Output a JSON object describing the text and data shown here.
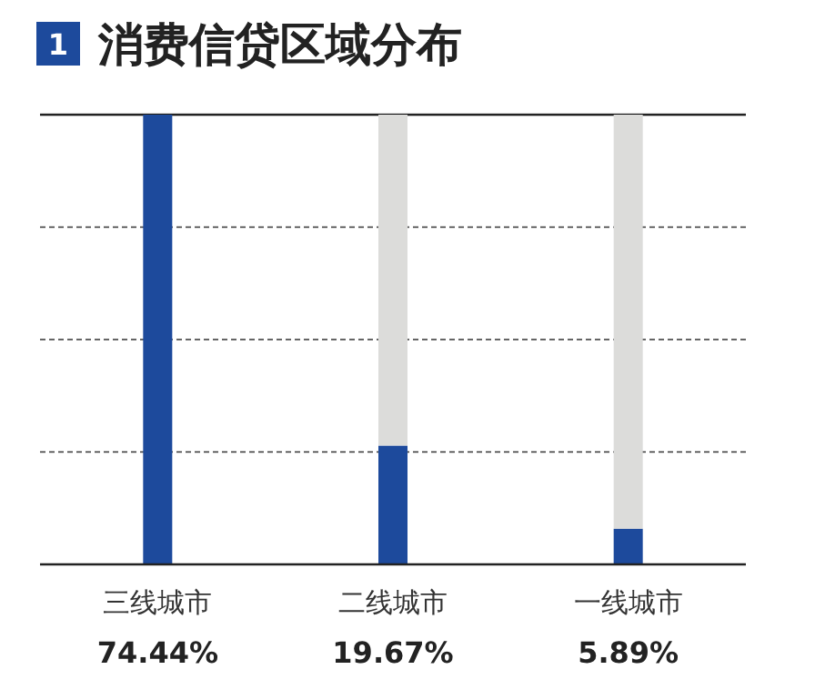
{
  "chart_data": {
    "type": "bar",
    "title": "消费信贷区域分布",
    "annotations": [
      "1"
    ],
    "categories": [
      "三线城市",
      "二线城市",
      "一线城市"
    ],
    "stacked": true,
    "grid": true,
    "series": [
      {
        "color": "#1d4a9c",
        "values": [
          74.44,
          19.67,
          5.89
        ],
        "value_labels": [
          "74.44%",
          "19.67%",
          "5.89%"
        ]
      },
      {
        "color": "#dcdcda",
        "values": [
          0,
          54.77,
          68.55
        ]
      }
    ]
  }
}
